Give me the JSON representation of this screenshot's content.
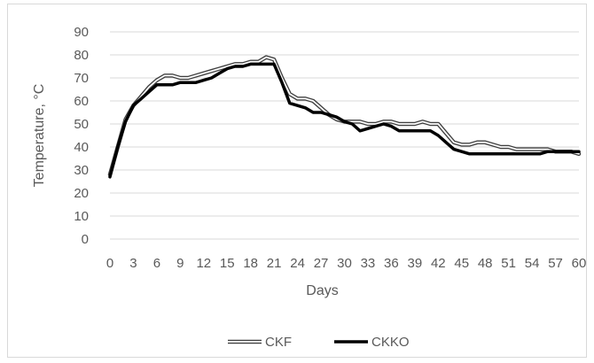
{
  "chart_data": {
    "type": "line",
    "title": "",
    "xlabel": "Days",
    "ylabel": "Temperature, °C",
    "ylim": [
      0,
      90
    ],
    "yticks": [
      0,
      10,
      20,
      30,
      40,
      50,
      60,
      70,
      80,
      90
    ],
    "categories": [
      "0",
      "3",
      "6",
      "9",
      "12",
      "15",
      "18",
      "21",
      "24",
      "27",
      "30",
      "33",
      "36",
      "39",
      "42",
      "45",
      "48",
      "51",
      "54",
      "57",
      "60"
    ],
    "x": [
      0,
      1,
      2,
      3,
      4,
      5,
      6,
      7,
      8,
      9,
      10,
      11,
      12,
      13,
      14,
      15,
      16,
      17,
      18,
      19,
      20,
      21,
      22,
      23,
      24,
      25,
      26,
      27,
      28,
      29,
      30,
      31,
      32,
      33,
      34,
      35,
      36,
      37,
      38,
      39,
      40,
      41,
      42,
      43,
      44,
      45,
      46,
      47,
      48,
      49,
      50,
      51,
      52,
      53,
      54,
      55,
      56,
      57,
      58,
      59,
      60
    ],
    "series": [
      {
        "name": "CKF",
        "color": "#404040",
        "style": "double-line",
        "values": [
          28,
          40,
          52,
          58,
          62,
          66,
          69,
          71,
          71,
          70,
          70,
          71,
          72,
          73,
          74,
          75,
          76,
          76,
          77,
          77,
          79,
          78,
          70,
          63,
          61,
          61,
          60,
          57,
          54,
          52,
          51,
          51,
          51,
          50,
          50,
          51,
          51,
          50,
          50,
          50,
          51,
          50,
          50,
          46,
          42,
          41,
          41,
          42,
          42,
          41,
          40,
          40,
          39,
          39,
          39,
          39,
          39,
          38,
          38,
          38,
          37
        ]
      },
      {
        "name": "CKKO",
        "color": "#000000",
        "style": "solid",
        "values": [
          27,
          40,
          51,
          58,
          61,
          64,
          67,
          67,
          67,
          68,
          68,
          68,
          69,
          70,
          72,
          74,
          75,
          75,
          76,
          76,
          76,
          76,
          68,
          59,
          58,
          57,
          55,
          55,
          54,
          53,
          51,
          50,
          47,
          48,
          49,
          50,
          49,
          47,
          47,
          47,
          47,
          47,
          45,
          42,
          39,
          38,
          37,
          37,
          37,
          37,
          37,
          37,
          37,
          37,
          37,
          37,
          38,
          38,
          38,
          38,
          38
        ]
      }
    ],
    "legend": "bottom",
    "grid": true
  }
}
